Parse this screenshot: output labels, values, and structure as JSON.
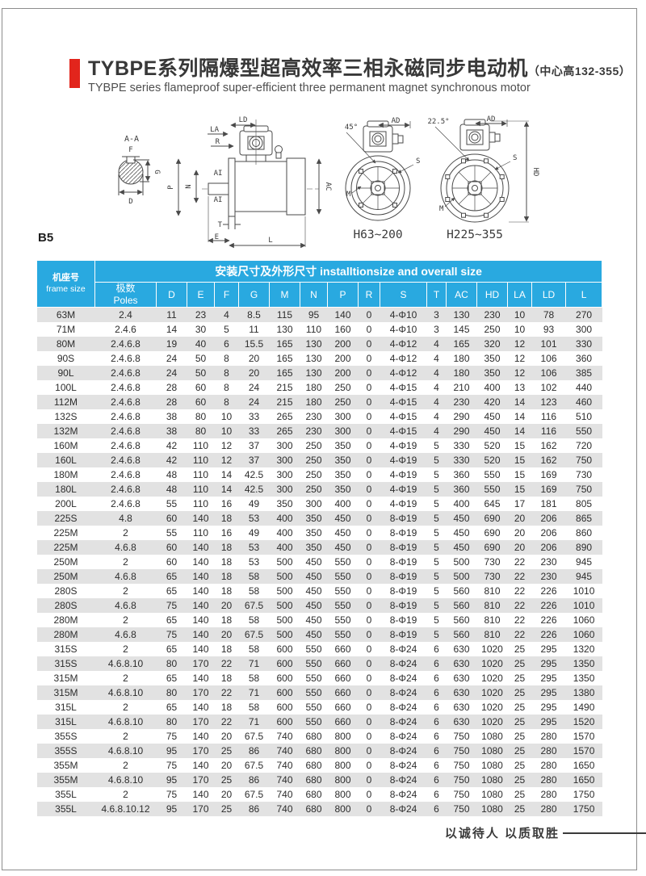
{
  "page": {
    "title_zh": "TYBPE系列隔爆型超高效率三相永磁同步电动机",
    "title_suffix": "（中心高132-355）",
    "subtitle_en": "TYBPE series flameproof super-efficient three permanent magnet synchronous motor",
    "mount_code": "B5",
    "footer_motto": "以诚待人  以质取胜"
  },
  "colors": {
    "accent_red": "#e2251c",
    "header_cyan": "#29a9e0",
    "row_stripe_gray": "#e2e2e2"
  },
  "diagram": {
    "section_view": {
      "title": "A-A",
      "dim_f": "F",
      "dim_g": "G",
      "dim_d": "D"
    },
    "side_view": {
      "dim_la": "LA",
      "dim_ld": "LD",
      "dim_r": "R",
      "dim_ai": "AI",
      "dim_n": "N",
      "dim_p": "P",
      "dim_ac": "AC",
      "dim_t": "T",
      "dim_e": "E",
      "dim_l": "L"
    },
    "front_view_small": {
      "angle": "45°",
      "dim_ad": "AD",
      "dim_s": "S",
      "dim_m": "M",
      "caption": "H63~200"
    },
    "front_view_large": {
      "angle": "22.5°",
      "dim_ad": "AD",
      "dim_s": "S",
      "dim_m": "M",
      "dim_hd": "HD",
      "caption": "H225~355"
    }
  },
  "table": {
    "frame_col_zh": "机座号",
    "frame_col_en": "frame size",
    "span_header_zh": "安装尺寸及外形尺寸",
    "span_header_en": "installtionsize and overall size",
    "poles_zh": "极数",
    "poles_en": "Poles",
    "dim_columns": [
      "D",
      "E",
      "F",
      "G",
      "M",
      "N",
      "P",
      "R",
      "S",
      "T",
      "AC",
      "HD",
      "LA",
      "LD",
      "L"
    ],
    "rows": [
      [
        "63M",
        "2.4",
        "11",
        "23",
        "4",
        "8.5",
        "115",
        "95",
        "140",
        "0",
        "4-Φ10",
        "3",
        "130",
        "230",
        "10",
        "78",
        "270"
      ],
      [
        "71M",
        "2.4.6",
        "14",
        "30",
        "5",
        "11",
        "130",
        "110",
        "160",
        "0",
        "4-Φ10",
        "3",
        "145",
        "250",
        "10",
        "93",
        "300"
      ],
      [
        "80M",
        "2.4.6.8",
        "19",
        "40",
        "6",
        "15.5",
        "165",
        "130",
        "200",
        "0",
        "4-Φ12",
        "4",
        "165",
        "320",
        "12",
        "101",
        "330"
      ],
      [
        "90S",
        "2.4.6.8",
        "24",
        "50",
        "8",
        "20",
        "165",
        "130",
        "200",
        "0",
        "4-Φ12",
        "4",
        "180",
        "350",
        "12",
        "106",
        "360"
      ],
      [
        "90L",
        "2.4.6.8",
        "24",
        "50",
        "8",
        "20",
        "165",
        "130",
        "200",
        "0",
        "4-Φ12",
        "4",
        "180",
        "350",
        "12",
        "106",
        "385"
      ],
      [
        "100L",
        "2.4.6.8",
        "28",
        "60",
        "8",
        "24",
        "215",
        "180",
        "250",
        "0",
        "4-Φ15",
        "4",
        "210",
        "400",
        "13",
        "102",
        "440"
      ],
      [
        "112M",
        "2.4.6.8",
        "28",
        "60",
        "8",
        "24",
        "215",
        "180",
        "250",
        "0",
        "4-Φ15",
        "4",
        "230",
        "420",
        "14",
        "123",
        "460"
      ],
      [
        "132S",
        "2.4.6.8",
        "38",
        "80",
        "10",
        "33",
        "265",
        "230",
        "300",
        "0",
        "4-Φ15",
        "4",
        "290",
        "450",
        "14",
        "116",
        "510"
      ],
      [
        "132M",
        "2.4.6.8",
        "38",
        "80",
        "10",
        "33",
        "265",
        "230",
        "300",
        "0",
        "4-Φ15",
        "4",
        "290",
        "450",
        "14",
        "116",
        "550"
      ],
      [
        "160M",
        "2.4.6.8",
        "42",
        "110",
        "12",
        "37",
        "300",
        "250",
        "350",
        "0",
        "4-Φ19",
        "5",
        "330",
        "520",
        "15",
        "162",
        "720"
      ],
      [
        "160L",
        "2.4.6.8",
        "42",
        "110",
        "12",
        "37",
        "300",
        "250",
        "350",
        "0",
        "4-Φ19",
        "5",
        "330",
        "520",
        "15",
        "162",
        "750"
      ],
      [
        "180M",
        "2.4.6.8",
        "48",
        "110",
        "14",
        "42.5",
        "300",
        "250",
        "350",
        "0",
        "4-Φ19",
        "5",
        "360",
        "550",
        "15",
        "169",
        "730"
      ],
      [
        "180L",
        "2.4.6.8",
        "48",
        "110",
        "14",
        "42.5",
        "300",
        "250",
        "350",
        "0",
        "4-Φ19",
        "5",
        "360",
        "550",
        "15",
        "169",
        "750"
      ],
      [
        "200L",
        "2.4.6.8",
        "55",
        "110",
        "16",
        "49",
        "350",
        "300",
        "400",
        "0",
        "4-Φ19",
        "5",
        "400",
        "645",
        "17",
        "181",
        "805"
      ],
      [
        "225S",
        "4.8",
        "60",
        "140",
        "18",
        "53",
        "400",
        "350",
        "450",
        "0",
        "8-Φ19",
        "5",
        "450",
        "690",
        "20",
        "206",
        "865"
      ],
      [
        "225M",
        "2",
        "55",
        "110",
        "16",
        "49",
        "400",
        "350",
        "450",
        "0",
        "8-Φ19",
        "5",
        "450",
        "690",
        "20",
        "206",
        "860"
      ],
      [
        "225M",
        "4.6.8",
        "60",
        "140",
        "18",
        "53",
        "400",
        "350",
        "450",
        "0",
        "8-Φ19",
        "5",
        "450",
        "690",
        "20",
        "206",
        "890"
      ],
      [
        "250M",
        "2",
        "60",
        "140",
        "18",
        "53",
        "500",
        "450",
        "550",
        "0",
        "8-Φ19",
        "5",
        "500",
        "730",
        "22",
        "230",
        "945"
      ],
      [
        "250M",
        "4.6.8",
        "65",
        "140",
        "18",
        "58",
        "500",
        "450",
        "550",
        "0",
        "8-Φ19",
        "5",
        "500",
        "730",
        "22",
        "230",
        "945"
      ],
      [
        "280S",
        "2",
        "65",
        "140",
        "18",
        "58",
        "500",
        "450",
        "550",
        "0",
        "8-Φ19",
        "5",
        "560",
        "810",
        "22",
        "226",
        "1010"
      ],
      [
        "280S",
        "4.6.8",
        "75",
        "140",
        "20",
        "67.5",
        "500",
        "450",
        "550",
        "0",
        "8-Φ19",
        "5",
        "560",
        "810",
        "22",
        "226",
        "1010"
      ],
      [
        "280M",
        "2",
        "65",
        "140",
        "18",
        "58",
        "500",
        "450",
        "550",
        "0",
        "8-Φ19",
        "5",
        "560",
        "810",
        "22",
        "226",
        "1060"
      ],
      [
        "280M",
        "4.6.8",
        "75",
        "140",
        "20",
        "67.5",
        "500",
        "450",
        "550",
        "0",
        "8-Φ19",
        "5",
        "560",
        "810",
        "22",
        "226",
        "1060"
      ],
      [
        "315S",
        "2",
        "65",
        "140",
        "18",
        "58",
        "600",
        "550",
        "660",
        "0",
        "8-Φ24",
        "6",
        "630",
        "1020",
        "25",
        "295",
        "1320"
      ],
      [
        "315S",
        "4.6.8.10",
        "80",
        "170",
        "22",
        "71",
        "600",
        "550",
        "660",
        "0",
        "8-Φ24",
        "6",
        "630",
        "1020",
        "25",
        "295",
        "1350"
      ],
      [
        "315M",
        "2",
        "65",
        "140",
        "18",
        "58",
        "600",
        "550",
        "660",
        "0",
        "8-Φ24",
        "6",
        "630",
        "1020",
        "25",
        "295",
        "1350"
      ],
      [
        "315M",
        "4.6.8.10",
        "80",
        "170",
        "22",
        "71",
        "600",
        "550",
        "660",
        "0",
        "8-Φ24",
        "6",
        "630",
        "1020",
        "25",
        "295",
        "1380"
      ],
      [
        "315L",
        "2",
        "65",
        "140",
        "18",
        "58",
        "600",
        "550",
        "660",
        "0",
        "8-Φ24",
        "6",
        "630",
        "1020",
        "25",
        "295",
        "1490"
      ],
      [
        "315L",
        "4.6.8.10",
        "80",
        "170",
        "22",
        "71",
        "600",
        "550",
        "660",
        "0",
        "8-Φ24",
        "6",
        "630",
        "1020",
        "25",
        "295",
        "1520"
      ],
      [
        "355S",
        "2",
        "75",
        "140",
        "20",
        "67.5",
        "740",
        "680",
        "800",
        "0",
        "8-Φ24",
        "6",
        "750",
        "1080",
        "25",
        "280",
        "1570"
      ],
      [
        "355S",
        "4.6.8.10",
        "95",
        "170",
        "25",
        "86",
        "740",
        "680",
        "800",
        "0",
        "8-Φ24",
        "6",
        "750",
        "1080",
        "25",
        "280",
        "1570"
      ],
      [
        "355M",
        "2",
        "75",
        "140",
        "20",
        "67.5",
        "740",
        "680",
        "800",
        "0",
        "8-Φ24",
        "6",
        "750",
        "1080",
        "25",
        "280",
        "1650"
      ],
      [
        "355M",
        "4.6.8.10",
        "95",
        "170",
        "25",
        "86",
        "740",
        "680",
        "800",
        "0",
        "8-Φ24",
        "6",
        "750",
        "1080",
        "25",
        "280",
        "1650"
      ],
      [
        "355L",
        "2",
        "75",
        "140",
        "20",
        "67.5",
        "740",
        "680",
        "800",
        "0",
        "8-Φ24",
        "6",
        "750",
        "1080",
        "25",
        "280",
        "1750"
      ],
      [
        "355L",
        "4.6.8.10.12",
        "95",
        "170",
        "25",
        "86",
        "740",
        "680",
        "800",
        "0",
        "8-Φ24",
        "6",
        "750",
        "1080",
        "25",
        "280",
        "1750"
      ]
    ]
  }
}
